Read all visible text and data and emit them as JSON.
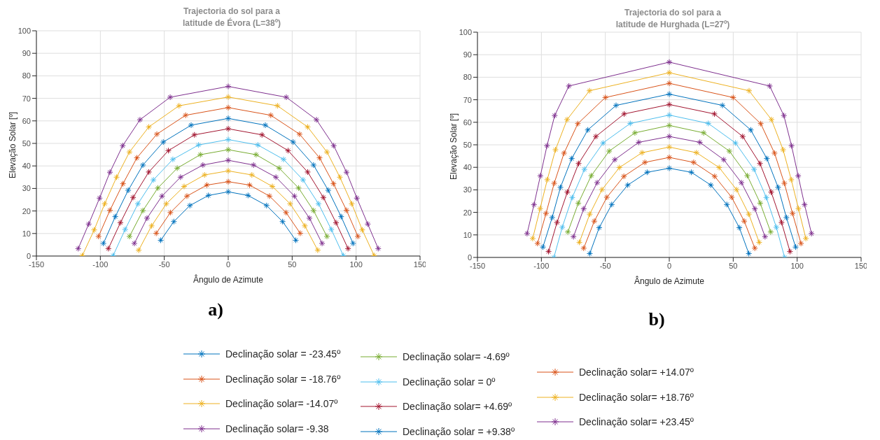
{
  "chart_data": [
    {
      "type": "line",
      "title": "Trajectoria do sol para a\nlatitude de Évora (L=38º)",
      "xlabel": "Ângulo de Azimute",
      "ylabel": "Elevação Solar [º]",
      "xlim": [
        -150,
        150
      ],
      "xticks": [
        -150,
        -100,
        -50,
        0,
        50,
        100,
        150
      ],
      "ylim": [
        0,
        100
      ],
      "yticks": [
        0,
        10,
        20,
        30,
        40,
        50,
        60,
        70,
        80,
        90,
        100
      ],
      "grid": true,
      "marker": "cross",
      "line_style": "solid",
      "legend": "bottom",
      "annotations": [
        "a)"
      ],
      "series": [
        {
          "name": "Declinação solar = -23.45º",
          "color": "#0072bd",
          "x": [
            -52.8,
            -42.5,
            -30,
            -15.5,
            0,
            15.5,
            30,
            42.5,
            52.8
          ],
          "values": [
            7,
            15.3,
            22.4,
            26.9,
            28.5,
            26.9,
            22.4,
            15.3,
            7
          ]
        },
        {
          "name": "Declinação solar = -18.76º",
          "color": "#d95319",
          "x": [
            -56.3,
            -45.2,
            -32.3,
            -16.7,
            0,
            16.7,
            32.3,
            45.2,
            56.3
          ],
          "values": [
            10.1,
            19.3,
            26.6,
            31.5,
            33,
            31.5,
            26.6,
            19.3,
            10.1
          ]
        },
        {
          "name": "Declinação solar= -14.07º",
          "color": "#edb120",
          "x": [
            -70,
            -59.9,
            -48.4,
            -34.5,
            -18.5,
            0,
            18.5,
            34.5,
            48.4,
            59.9,
            70
          ],
          "values": [
            2.6,
            13.4,
            23.2,
            30.9,
            36,
            37.8,
            36,
            30.9,
            23.2,
            13.4,
            2.6
          ]
        },
        {
          "name": "Declinação solar= -9.38",
          "color": "#7e2f8e",
          "x": [
            -73.4,
            -63.5,
            -51.8,
            -37.3,
            -19.8,
            0,
            19.8,
            37.3,
            51.8,
            63.5,
            73.4
          ],
          "values": [
            5.6,
            16.8,
            26.6,
            35,
            40.4,
            42.5,
            40.4,
            35,
            26.6,
            16.8,
            5.6
          ]
        },
        {
          "name": "Declinação solar= -4.69º",
          "color": "#77ac30",
          "x": [
            -77.2,
            -66.7,
            -55,
            -39.9,
            -21.8,
            0,
            21.8,
            39.9,
            55,
            66.7,
            77.2
          ],
          "values": [
            8.7,
            20.2,
            30.2,
            39,
            45,
            47.2,
            45,
            39,
            30.2,
            20.2,
            8.7
          ]
        },
        {
          "name": "Declinação solar = 0º",
          "color": "#4dbeee",
          "x": [
            -90,
            -80.6,
            -70.6,
            -58.5,
            -43.3,
            -23.2,
            0,
            23.2,
            43.3,
            58.5,
            70.6,
            80.6,
            90
          ],
          "values": [
            0.2,
            11.8,
            23.2,
            33.8,
            42.9,
            49.3,
            51.7,
            49.3,
            42.9,
            33.8,
            23.2,
            11.8,
            0.2
          ]
        },
        {
          "name": "Declinação solar= +4.69º",
          "color": "#a2142f",
          "x": [
            -93.7,
            -84.3,
            -74.4,
            -62.1,
            -46.8,
            -26.4,
            0,
            26.4,
            46.8,
            62.1,
            74.4,
            84.3,
            93.7
          ],
          "values": [
            3.3,
            14.8,
            26,
            37.3,
            46.8,
            53.8,
            56.5,
            53.8,
            46.8,
            37.3,
            26,
            14.8,
            3.3
          ]
        },
        {
          "name": "Declinação solar = +9.38º",
          "color": "#0072bd",
          "x": [
            -97.6,
            -88.3,
            -78.2,
            -66.7,
            -50.8,
            -29,
            0,
            29,
            50.8,
            66.7,
            78.2,
            88.3,
            97.6
          ],
          "values": [
            5.6,
            17.5,
            29.2,
            40.4,
            50.6,
            58.1,
            61.1,
            58.1,
            50.6,
            40.4,
            29.2,
            17.5,
            5.6
          ]
        },
        {
          "name": "Declinação solar= +14.07º",
          "color": "#d95319",
          "x": [
            -101.4,
            -92.5,
            -82.3,
            -71.4,
            -55.8,
            -33.3,
            0,
            33.3,
            55.8,
            71.4,
            82.3,
            92.5,
            101.4
          ],
          "values": [
            8.7,
            20.3,
            32.1,
            43.6,
            54.1,
            62.5,
            65.9,
            62.5,
            54.1,
            43.6,
            32.1,
            20.3,
            8.7
          ]
        },
        {
          "name": "Declinação solar= +18.76º",
          "color": "#edb120",
          "x": [
            -114.1,
            -104.8,
            -96.6,
            -87.3,
            -77.2,
            -62.1,
            -38.5,
            0,
            38.5,
            62.1,
            77.2,
            87.3,
            96.6,
            104.8,
            114.1
          ],
          "values": [
            0.2,
            11.6,
            23.2,
            35,
            46.2,
            57.3,
            66.7,
            70.6,
            66.7,
            57.3,
            46.2,
            35,
            23.2,
            11.6,
            0.2
          ]
        },
        {
          "name": "Declinação solar= +23.45º",
          "color": "#7e2f8e",
          "x": [
            -117.3,
            -109.1,
            -100.6,
            -92.5,
            -82.5,
            -69,
            -45.4,
            0,
            45.4,
            69,
            82.5,
            92.5,
            100.6,
            109.1,
            117.3
          ],
          "values": [
            3.3,
            14.2,
            25.7,
            37.2,
            49,
            60.5,
            70.5,
            75.3,
            70.5,
            60.5,
            49,
            37.2,
            25.7,
            14.2,
            3.3
          ]
        }
      ]
    },
    {
      "type": "line",
      "title": "Trajectoria do sol para a\nlatitude de Hurghada (L=27º)",
      "xlabel": "Ângulo de Azimute",
      "ylabel": "Elevação Solar [º]",
      "xlim": [
        -150,
        150
      ],
      "xticks": [
        -150,
        -100,
        -50,
        0,
        50,
        100,
        150
      ],
      "ylim": [
        0,
        100
      ],
      "yticks": [
        0,
        10,
        20,
        30,
        40,
        50,
        60,
        70,
        80,
        90,
        100
      ],
      "grid": true,
      "marker": "cross",
      "line_style": "solid",
      "annotations": [
        "b)"
      ],
      "series": [
        {
          "color": "#0072bd",
          "x": [
            -62.2,
            -54.8,
            -45,
            -32.5,
            -17.3,
            0,
            17.3,
            32.5,
            45,
            54.8,
            62.2
          ],
          "values": [
            1.7,
            13.2,
            23.5,
            32.1,
            37.8,
            39.6,
            37.8,
            32.1,
            23.5,
            13.2,
            1.7
          ]
        },
        {
          "color": "#d95319",
          "x": [
            -66.9,
            -58.6,
            -48.8,
            -35.5,
            -19.1,
            0,
            19.1,
            35.5,
            48.8,
            58.6,
            66.9
          ],
          "values": [
            4.1,
            16.1,
            26.7,
            36,
            42.2,
            44.4,
            42.2,
            36,
            26.7,
            16.1,
            4.1
          ]
        },
        {
          "color": "#edb120",
          "x": [
            -70.3,
            -62.2,
            -52.6,
            -39,
            -21.3,
            0,
            21.3,
            39,
            52.6,
            62.2,
            70.3
          ],
          "values": [
            6.7,
            19.2,
            30.1,
            39.9,
            46.5,
            49,
            46.5,
            39.9,
            30.1,
            19.2,
            6.7
          ]
        },
        {
          "color": "#7e2f8e",
          "x": [
            -74.9,
            -66.9,
            -56.4,
            -42.6,
            -23.9,
            0,
            23.9,
            42.6,
            56.4,
            66.9,
            74.9
          ],
          "values": [
            9.2,
            21.6,
            33.2,
            43.4,
            51.1,
            53.7,
            51.1,
            43.4,
            33.2,
            21.6,
            9.2
          ]
        },
        {
          "color": "#77ac30",
          "x": [
            -79.3,
            -71.1,
            -61,
            -47,
            -26.9,
            0,
            26.9,
            47,
            61,
            71.1,
            79.3
          ],
          "values": [
            11.3,
            24.1,
            36.3,
            47.2,
            55.3,
            58.6,
            55.3,
            47.2,
            36.3,
            24.1,
            11.3
          ]
        },
        {
          "color": "#4dbeee",
          "x": [
            -90.2,
            -83.7,
            -75.9,
            -66.3,
            -51.8,
            -30.5,
            0,
            30.5,
            51.8,
            66.3,
            75.9,
            83.7,
            90.2
          ],
          "values": [
            0,
            13.4,
            26.6,
            39.1,
            50.8,
            59.5,
            63.2,
            59.5,
            50.8,
            39.1,
            26.6,
            13.4,
            0
          ]
        },
        {
          "color": "#a2142f",
          "x": [
            -94.4,
            -87.8,
            -79.7,
            -70.9,
            -57.4,
            -35.3,
            0,
            35.3,
            57.4,
            70.9,
            79.7,
            87.8,
            94.4
          ],
          "values": [
            2.6,
            15.5,
            29,
            41.7,
            53.7,
            63.7,
            67.9,
            63.7,
            53.7,
            41.7,
            29,
            15.5,
            2.6
          ]
        },
        {
          "color": "#0072bd",
          "x": [
            -98.8,
            -91.6,
            -85.1,
            -76.3,
            -63.7,
            -41.6,
            0,
            41.6,
            63.7,
            76.3,
            85.1,
            91.6,
            98.8
          ],
          "values": [
            4.6,
            17.7,
            31.1,
            43.9,
            56.6,
            67.5,
            72.5,
            67.5,
            56.6,
            43.9,
            31.1,
            17.7,
            4.6
          ]
        },
        {
          "color": "#d95319",
          "x": [
            -103,
            -96.4,
            -90,
            -82.3,
            -71.5,
            -50,
            0,
            50,
            71.5,
            82.3,
            90,
            96.4,
            103
          ],
          "values": [
            6.2,
            19.5,
            32.9,
            46.3,
            59.4,
            71,
            77.3,
            71,
            59.4,
            46.3,
            32.9,
            19.5,
            6.2
          ]
        },
        {
          "color": "#edb120",
          "x": [
            -106.8,
            -101,
            -95.4,
            -89,
            -79.9,
            -62.4,
            0,
            62.4,
            79.9,
            89,
            95.4,
            101,
            106.8
          ],
          "values": [
            8.4,
            21.7,
            34.5,
            47.8,
            61.2,
            74,
            82,
            74,
            61.2,
            47.8,
            34.5,
            21.7,
            8.4
          ]
        },
        {
          "color": "#7e2f8e",
          "x": [
            -111.2,
            -105.8,
            -100.8,
            -95.6,
            -89.6,
            -78.5,
            0,
            78.5,
            89.6,
            95.6,
            100.8,
            105.8,
            111.2
          ],
          "values": [
            10.6,
            23.4,
            36.2,
            49.6,
            63,
            76.1,
            86.7,
            76.1,
            63,
            49.6,
            36.2,
            23.4,
            10.6
          ]
        }
      ]
    }
  ]
}
